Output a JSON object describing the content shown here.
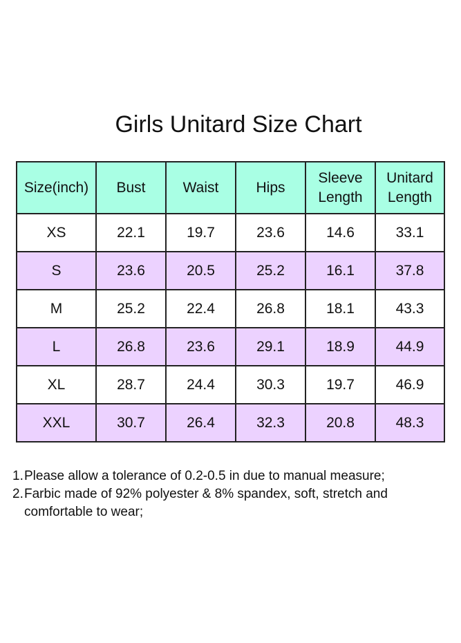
{
  "title": "Girls Unitard Size Chart",
  "table": {
    "headers": [
      [
        "Size(inch)"
      ],
      [
        "Bust"
      ],
      [
        "Waist"
      ],
      [
        "Hips"
      ],
      [
        "Sleeve",
        "Length"
      ],
      [
        "Unitard",
        "Length"
      ]
    ],
    "rows": [
      [
        "XS",
        "22.1",
        "19.7",
        "23.6",
        "14.6",
        "33.1"
      ],
      [
        "S",
        "23.6",
        "20.5",
        "25.2",
        "16.1",
        "37.8"
      ],
      [
        "M",
        "25.2",
        "22.4",
        "26.8",
        "18.1",
        "43.3"
      ],
      [
        "L",
        "26.8",
        "23.6",
        "29.1",
        "18.9",
        "44.9"
      ],
      [
        "XL",
        "28.7",
        "24.4",
        "30.3",
        "19.7",
        "46.9"
      ],
      [
        "XXL",
        "30.7",
        "26.4",
        "32.3",
        "20.8",
        "48.3"
      ]
    ]
  },
  "notes": [
    {
      "num": "1.",
      "text": "Please allow a tolerance of 0.2-0.5 in due to manual measure;"
    },
    {
      "num": "2.",
      "text": "Farbic made of 92% polyester & 8% spandex, soft, stretch and comfortable to wear;"
    }
  ],
  "colors": {
    "header_bg": "#a9ffe4",
    "odd_row_bg": "#ecd2ff",
    "even_row_bg": "#ffffff",
    "border": "#222222"
  }
}
